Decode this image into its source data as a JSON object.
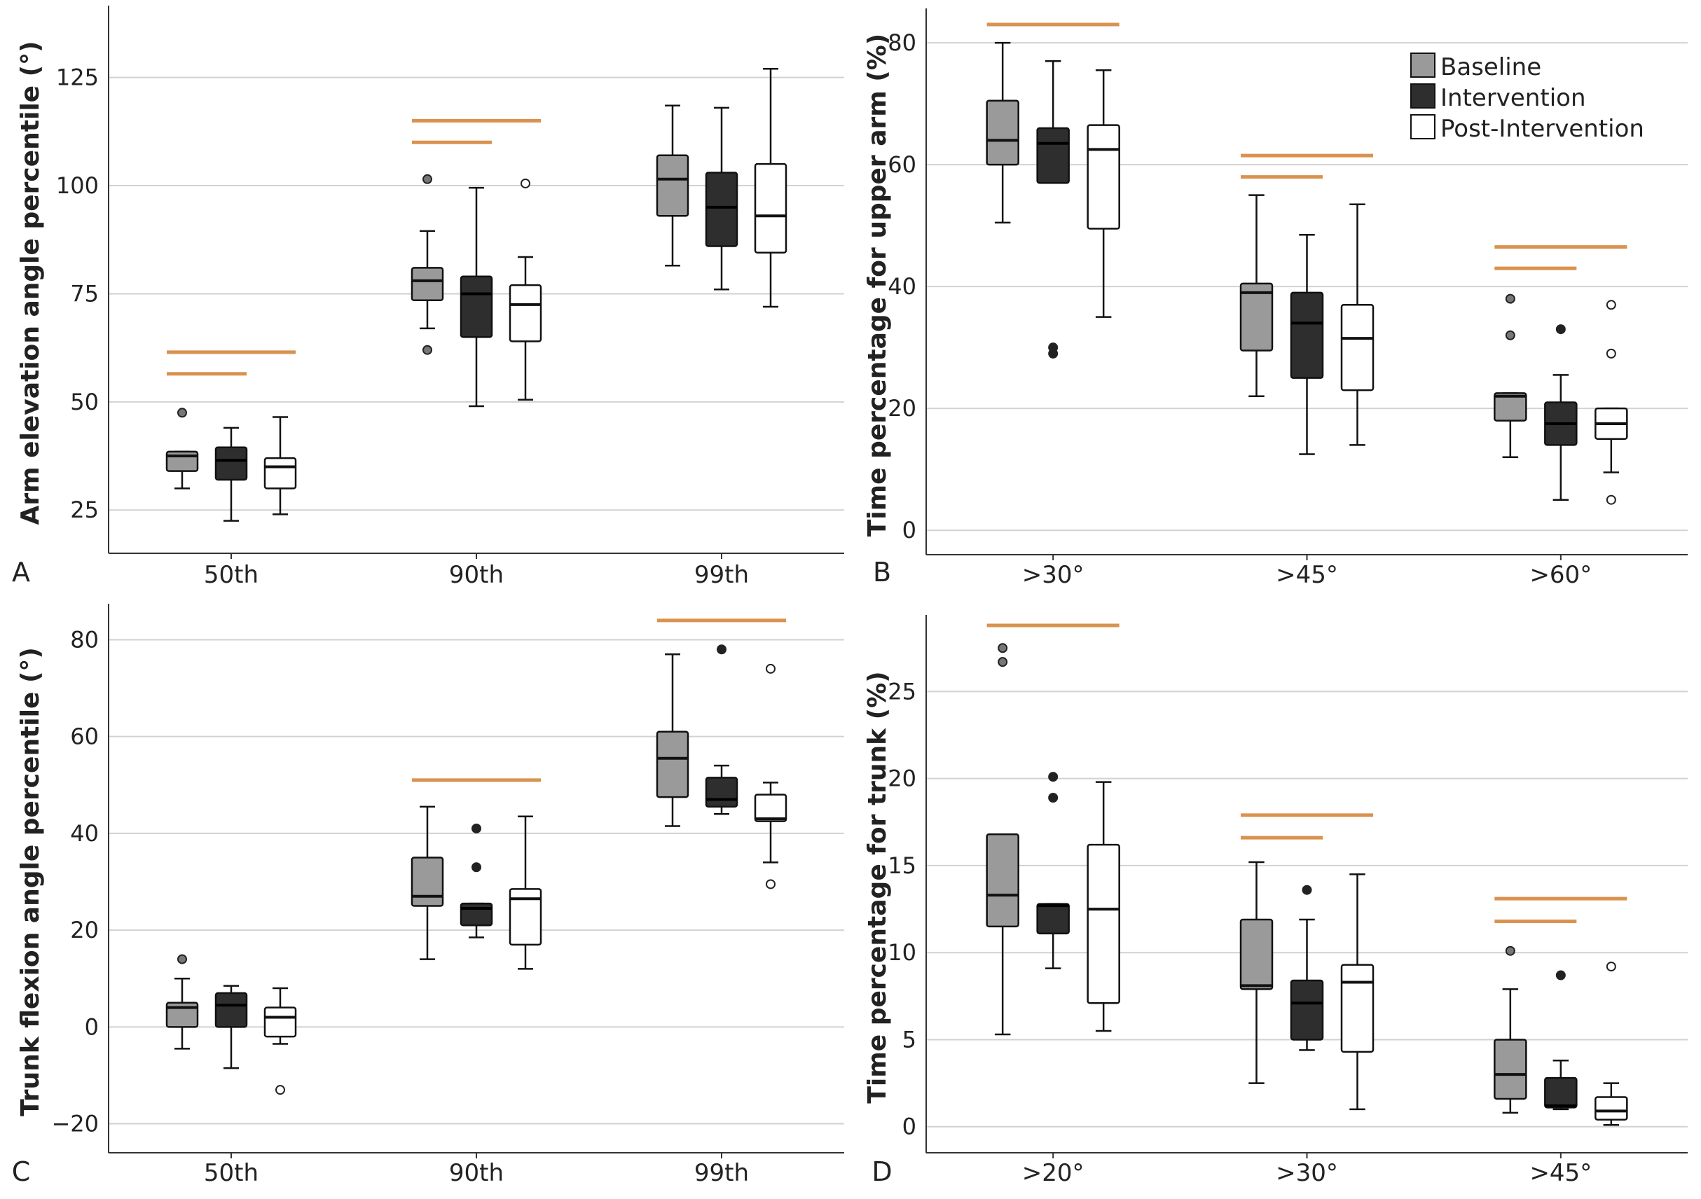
{
  "chart_data": [
    {
      "type": "box",
      "panel_label": "A",
      "ylabel": "Arm elevation angle percentile (°)",
      "ylim": [
        15,
        140
      ],
      "yticks": [
        25,
        50,
        75,
        100,
        125
      ],
      "categories": [
        "50th",
        "90th",
        "99th"
      ],
      "series_names": [
        "Baseline",
        "Intervention",
        "Post-Intervention"
      ],
      "boxes": [
        [
          {
            "min": 30,
            "q1": 34,
            "median": 37.5,
            "q3": 38.5,
            "max": 38.5,
            "outliers": [
              47.5
            ]
          },
          {
            "min": 22.5,
            "q1": 32,
            "median": 36.5,
            "q3": 39.5,
            "max": 44,
            "outliers": []
          },
          {
            "min": 24,
            "q1": 30,
            "median": 35,
            "q3": 37,
            "max": 46.5,
            "outliers": []
          }
        ],
        [
          {
            "min": 67,
            "q1": 73.5,
            "median": 78,
            "q3": 81,
            "max": 89.5,
            "outliers": [
              101.5,
              62
            ]
          },
          {
            "min": 49,
            "q1": 65,
            "median": 75,
            "q3": 79,
            "max": 99.5,
            "outliers": []
          },
          {
            "min": 50.5,
            "q1": 64,
            "median": 72.5,
            "q3": 77,
            "max": 83.5,
            "outliers": [
              100.5
            ]
          }
        ],
        [
          {
            "min": 81.5,
            "q1": 93,
            "median": 101.5,
            "q3": 107,
            "max": 118.5,
            "outliers": []
          },
          {
            "min": 76,
            "q1": 86,
            "median": 95,
            "q3": 103,
            "max": 118,
            "outliers": []
          },
          {
            "min": 72,
            "q1": 84.5,
            "median": 93,
            "q3": 105,
            "max": 127,
            "outliers": []
          }
        ]
      ],
      "significance_bars": [
        {
          "category": 0,
          "from": 0,
          "to": 1,
          "y": 56.5
        },
        {
          "category": 0,
          "from": 0,
          "to": 2,
          "y": 61.5
        },
        {
          "category": 1,
          "from": 0,
          "to": 1,
          "y": 110
        },
        {
          "category": 1,
          "from": 0,
          "to": 2,
          "y": 115
        }
      ]
    },
    {
      "type": "box",
      "panel_label": "B",
      "ylabel": "Time percentage for upper arm (%)",
      "ylim": [
        -4,
        84.5
      ],
      "yticks": [
        0,
        20,
        40,
        60,
        80
      ],
      "categories": [
        ">30°",
        ">45°",
        ">60°"
      ],
      "series_names": [
        "Baseline",
        "Intervention",
        "Post-Intervention"
      ],
      "legend_position": "top-right",
      "boxes": [
        [
          {
            "min": 50.5,
            "q1": 60,
            "median": 64,
            "q3": 70.5,
            "max": 80,
            "outliers": []
          },
          {
            "min": 57,
            "q1": 57,
            "median": 63.5,
            "q3": 66,
            "max": 77,
            "outliers": [
              29,
              30
            ]
          },
          {
            "min": 35,
            "q1": 49.5,
            "median": 62.5,
            "q3": 66.5,
            "max": 75.5,
            "outliers": []
          }
        ],
        [
          {
            "min": 22,
            "q1": 29.5,
            "median": 39,
            "q3": 40.5,
            "max": 55,
            "outliers": []
          },
          {
            "min": 12.5,
            "q1": 25,
            "median": 34,
            "q3": 39,
            "max": 48.5,
            "outliers": []
          },
          {
            "min": 14,
            "q1": 23,
            "median": 31.5,
            "q3": 37,
            "max": 53.5,
            "outliers": []
          }
        ],
        [
          {
            "min": 12,
            "q1": 18,
            "median": 22,
            "q3": 22.5,
            "max": 22.5,
            "outliers": [
              38,
              32
            ]
          },
          {
            "min": 5,
            "q1": 14,
            "median": 17.5,
            "q3": 21,
            "max": 25.5,
            "outliers": [
              33
            ]
          },
          {
            "min": 9.5,
            "q1": 15,
            "median": 17.5,
            "q3": 20,
            "max": 20,
            "outliers": [
              37,
              29,
              5
            ]
          }
        ]
      ],
      "significance_bars": [
        {
          "category": 0,
          "from": 0,
          "to": 2,
          "y": 83
        },
        {
          "category": 1,
          "from": 0,
          "to": 1,
          "y": 58
        },
        {
          "category": 1,
          "from": 0,
          "to": 2,
          "y": 61.5
        },
        {
          "category": 2,
          "from": 0,
          "to": 1,
          "y": 43
        },
        {
          "category": 2,
          "from": 0,
          "to": 2,
          "y": 46.5
        }
      ]
    },
    {
      "type": "box",
      "panel_label": "C",
      "ylabel": "Trunk flexion angle percentile (°)",
      "ylim": [
        -26,
        86
      ],
      "yticks": [
        -20,
        0,
        20,
        40,
        60,
        80
      ],
      "categories": [
        "50th",
        "90th",
        "99th"
      ],
      "series_names": [
        "Baseline",
        "Intervention",
        "Post-Intervention"
      ],
      "boxes": [
        [
          {
            "min": -4.5,
            "q1": 0,
            "median": 4,
            "q3": 5,
            "max": 10,
            "outliers": [
              14
            ]
          },
          {
            "min": -8.5,
            "q1": 0,
            "median": 4.5,
            "q3": 7,
            "max": 8.5,
            "outliers": []
          },
          {
            "min": -3.5,
            "q1": -2,
            "median": 2,
            "q3": 4,
            "max": 8,
            "outliers": [
              -13
            ]
          }
        ],
        [
          {
            "min": 14,
            "q1": 25,
            "median": 27,
            "q3": 35,
            "max": 45.5,
            "outliers": []
          },
          {
            "min": 18.5,
            "q1": 21,
            "median": 24.5,
            "q3": 25.5,
            "max": 25.5,
            "outliers": [
              41,
              33
            ]
          },
          {
            "min": 12,
            "q1": 17,
            "median": 26.5,
            "q3": 28.5,
            "max": 43.5,
            "outliers": []
          }
        ],
        [
          {
            "min": 41.5,
            "q1": 47.5,
            "median": 55.5,
            "q3": 61,
            "max": 77,
            "outliers": []
          },
          {
            "min": 44,
            "q1": 45.5,
            "median": 47,
            "q3": 51.5,
            "max": 54,
            "outliers": [
              78
            ]
          },
          {
            "min": 34,
            "q1": 42.5,
            "median": 43,
            "q3": 48,
            "max": 50.5,
            "outliers": [
              74,
              29.5
            ]
          }
        ]
      ],
      "significance_bars": [
        {
          "category": 1,
          "from": 0,
          "to": 2,
          "y": 51
        },
        {
          "category": 2,
          "from": 0,
          "to": 2,
          "y": 84
        }
      ]
    },
    {
      "type": "box",
      "panel_label": "D",
      "ylabel": "Time percentage for trunk (%)",
      "ylim": [
        -1.5,
        29
      ],
      "yticks": [
        0,
        5,
        10,
        15,
        20,
        25
      ],
      "categories": [
        ">20°",
        ">30°",
        ">45°"
      ],
      "series_names": [
        "Baseline",
        "Intervention",
        "Post-Intervention"
      ],
      "boxes": [
        [
          {
            "min": 5.3,
            "q1": 11.5,
            "median": 13.3,
            "q3": 16.8,
            "max": 16.8,
            "outliers": [
              27.5,
              26.7
            ]
          },
          {
            "min": 9.1,
            "q1": 11.1,
            "median": 12.7,
            "q3": 12.8,
            "max": 12.8,
            "outliers": [
              20.1,
              18.9
            ]
          },
          {
            "min": 5.5,
            "q1": 7.1,
            "median": 12.5,
            "q3": 16.2,
            "max": 19.8,
            "outliers": []
          }
        ],
        [
          {
            "min": 2.5,
            "q1": 7.9,
            "median": 8.1,
            "q3": 11.9,
            "max": 15.2,
            "outliers": []
          },
          {
            "min": 4.4,
            "q1": 5.0,
            "median": 7.1,
            "q3": 8.4,
            "max": 11.9,
            "outliers": [
              13.6
            ]
          },
          {
            "min": 1.0,
            "q1": 4.3,
            "median": 8.3,
            "q3": 9.3,
            "max": 14.5,
            "outliers": []
          }
        ],
        [
          {
            "min": 0.8,
            "q1": 1.6,
            "median": 3.0,
            "q3": 5.0,
            "max": 7.9,
            "outliers": [
              10.1
            ]
          },
          {
            "min": 1.0,
            "q1": 1.1,
            "median": 1.2,
            "q3": 2.8,
            "max": 3.8,
            "outliers": [
              8.7
            ]
          },
          {
            "min": 0.1,
            "q1": 0.4,
            "median": 0.9,
            "q3": 1.7,
            "max": 2.5,
            "outliers": [
              9.2
            ]
          }
        ]
      ],
      "significance_bars": [
        {
          "category": 0,
          "from": 0,
          "to": 2,
          "y": 28.8
        },
        {
          "category": 1,
          "from": 0,
          "to": 1,
          "y": 16.6
        },
        {
          "category": 1,
          "from": 0,
          "to": 2,
          "y": 17.9
        },
        {
          "category": 2,
          "from": 0,
          "to": 1,
          "y": 11.8
        },
        {
          "category": 2,
          "from": 0,
          "to": 2,
          "y": 13.1
        }
      ]
    }
  ],
  "colors": {
    "Baseline": "#9a9a9a",
    "Intervention": "#2e2e2e",
    "Post-Intervention": "#ffffff",
    "significance": "#d9924f",
    "gridline": "#d2d2d2",
    "axis": "#333333"
  }
}
